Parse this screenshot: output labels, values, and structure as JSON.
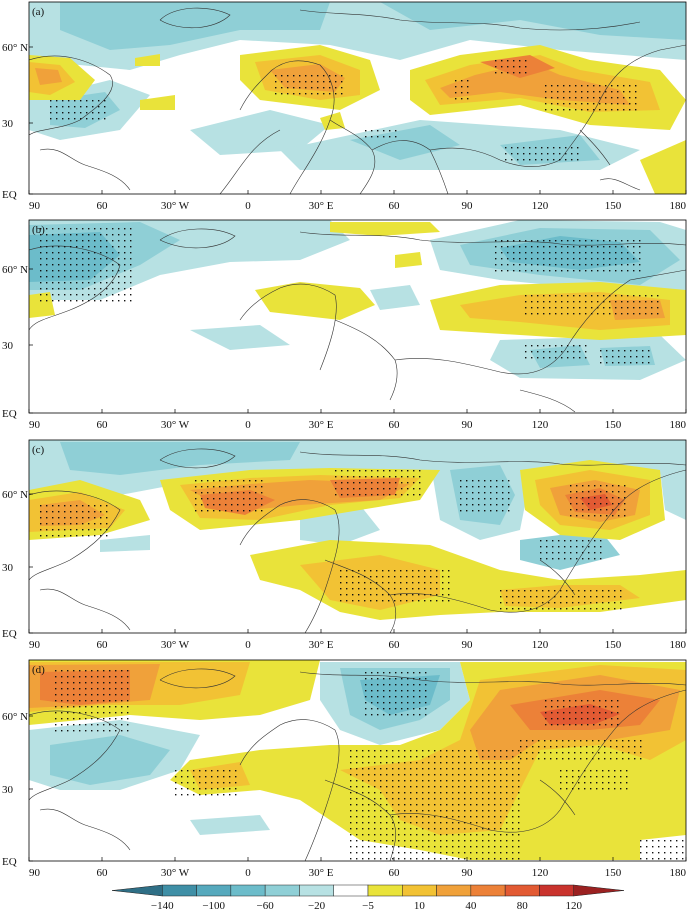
{
  "panels": [
    {
      "label": "(a)"
    },
    {
      "label": "(b)"
    },
    {
      "label": "(c)"
    },
    {
      "label": "(d)"
    }
  ],
  "x_ticks": [
    "90",
    "60",
    "30° W",
    "0",
    "30° E",
    "60",
    "90",
    "120",
    "150",
    "180"
  ],
  "y_ticks": [
    "60° N",
    "30",
    "EQ"
  ],
  "colorbar": {
    "labels": [
      "−140",
      "−100",
      "−60",
      "−20",
      "−5",
      "10",
      "40",
      "80",
      "120"
    ],
    "colors": [
      "#2f6f86",
      "#3f8fa6",
      "#56a9bd",
      "#6cbcca",
      "#8fcfd6",
      "#b7e1e3",
      "#ffffff",
      "#e9e33a",
      "#f2c234",
      "#f0a13a",
      "#ec8138",
      "#e25a33",
      "#c9332d",
      "#9b2121"
    ]
  }
}
